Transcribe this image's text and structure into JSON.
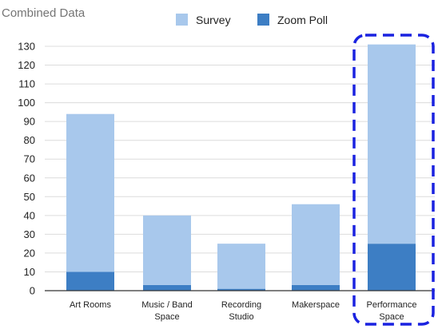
{
  "chart_data": {
    "type": "bar",
    "stacked": true,
    "title": "Combined Data",
    "categories": [
      [
        "Art Rooms"
      ],
      [
        "Music / Band",
        "Space"
      ],
      [
        "Recording",
        "Studio"
      ],
      [
        "Makerspace"
      ],
      [
        "Performance",
        "Space"
      ]
    ],
    "series": [
      {
        "name": "Zoom Poll",
        "color": "#3d7ec4",
        "values": [
          10,
          3,
          1,
          3,
          25
        ]
      },
      {
        "name": "Survey",
        "color": "#a8c8ec",
        "values": [
          84,
          37,
          24,
          43,
          106
        ]
      }
    ],
    "legend_order": [
      "Survey",
      "Zoom Poll"
    ],
    "legend_position": "top",
    "ylim": [
      0,
      130
    ],
    "yticks": [
      0,
      10,
      20,
      30,
      40,
      50,
      60,
      70,
      80,
      90,
      100,
      110,
      120,
      130
    ],
    "grid": true,
    "highlighted_category_index": 4,
    "highlight_color": "#1a22e0"
  }
}
